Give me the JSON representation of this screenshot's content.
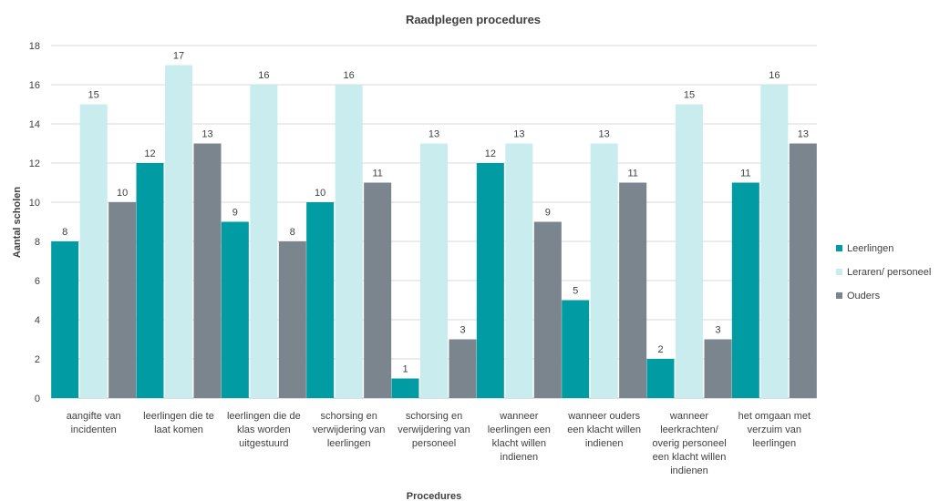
{
  "chart_data": {
    "type": "bar",
    "title": "Raadplegen procedures",
    "xlabel": "Procedures",
    "ylabel": "Aantal scholen",
    "ylim": [
      0,
      18
    ],
    "yticks": [
      0,
      2,
      4,
      6,
      8,
      10,
      12,
      14,
      16,
      18
    ],
    "grid": true,
    "legend_position": "right",
    "categories": [
      [
        "aangifte van",
        "incidenten"
      ],
      [
        "leerlingen die te",
        "laat komen"
      ],
      [
        "leerlingen die de",
        "klas worden",
        "uitgestuurd"
      ],
      [
        "schorsing en",
        "verwijdering van",
        "leerlingen"
      ],
      [
        "schorsing en",
        "verwijdering van",
        "personeel"
      ],
      [
        "wanneer",
        "leerlingen een",
        "klacht willen",
        "indienen"
      ],
      [
        "wanneer ouders",
        "een klacht willen",
        "indienen"
      ],
      [
        "wanneer",
        "leerkrachten/",
        "overig personeel",
        "een klacht willen",
        "indienen"
      ],
      [
        "het omgaan met",
        "verzuim van",
        "leerlingen"
      ]
    ],
    "series": [
      {
        "name": "Leerlingen",
        "color": "#009ba3",
        "values": [
          8,
          12,
          9,
          10,
          1,
          12,
          5,
          2,
          11
        ]
      },
      {
        "name": "Leraren/ personeel",
        "color": "#c9ecee",
        "values": [
          15,
          17,
          16,
          16,
          13,
          13,
          13,
          15,
          16
        ]
      },
      {
        "name": "Ouders",
        "color": "#7b858d",
        "values": [
          10,
          13,
          8,
          11,
          3,
          9,
          11,
          3,
          13
        ]
      }
    ]
  }
}
